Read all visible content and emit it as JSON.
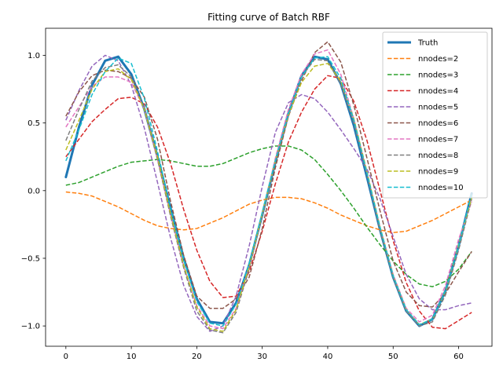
{
  "chart_data": {
    "type": "line",
    "title": "Fitting curve of Batch RBF",
    "xlabel": "",
    "ylabel": "",
    "xlim": [
      -3.1,
      65.1
    ],
    "ylim": [
      -1.15,
      1.2
    ],
    "xticks": [
      0,
      10,
      20,
      30,
      40,
      50,
      60
    ],
    "yticks": [
      -1.0,
      -0.5,
      0.0,
      0.5,
      1.0
    ],
    "xtick_labels": [
      "0",
      "10",
      "20",
      "30",
      "40",
      "50",
      "60"
    ],
    "ytick_labels": [
      "−1.0",
      "−0.5",
      "0.0",
      "0.5",
      "1.0"
    ],
    "grid": false,
    "legend_position": "upper right",
    "x": [
      0,
      2,
      4,
      6,
      8,
      10,
      12,
      14,
      16,
      18,
      20,
      22,
      24,
      26,
      28,
      30,
      32,
      34,
      36,
      38,
      40,
      42,
      44,
      46,
      48,
      50,
      52,
      54,
      56,
      58,
      60,
      62
    ],
    "series": [
      {
        "name": "Truth",
        "color": "#1f77b4",
        "style": "solid",
        "width": 3,
        "values": [
          0.1,
          0.47,
          0.78,
          0.96,
          0.99,
          0.86,
          0.6,
          0.25,
          -0.13,
          -0.5,
          -0.8,
          -0.97,
          -0.98,
          -0.83,
          -0.55,
          -0.18,
          0.21,
          0.57,
          0.85,
          0.99,
          0.97,
          0.79,
          0.48,
          0.1,
          -0.29,
          -0.64,
          -0.89,
          -1.0,
          -0.95,
          -0.74,
          -0.41,
          -0.02
        ]
      },
      {
        "name": "nnodes=2",
        "color": "#ff7f0e",
        "style": "dashed",
        "width": 1.5,
        "values": [
          -0.01,
          -0.02,
          -0.04,
          -0.08,
          -0.12,
          -0.17,
          -0.22,
          -0.26,
          -0.28,
          -0.29,
          -0.28,
          -0.24,
          -0.2,
          -0.15,
          -0.1,
          -0.07,
          -0.05,
          -0.05,
          -0.06,
          -0.09,
          -0.13,
          -0.18,
          -0.22,
          -0.26,
          -0.29,
          -0.31,
          -0.3,
          -0.26,
          -0.22,
          -0.17,
          -0.12,
          -0.07
        ]
      },
      {
        "name": "nnodes=3",
        "color": "#2ca02c",
        "style": "dashed",
        "width": 1.5,
        "values": [
          0.04,
          0.06,
          0.1,
          0.14,
          0.18,
          0.21,
          0.22,
          0.23,
          0.22,
          0.2,
          0.18,
          0.18,
          0.2,
          0.24,
          0.28,
          0.31,
          0.33,
          0.33,
          0.3,
          0.23,
          0.12,
          0.0,
          -0.13,
          -0.27,
          -0.4,
          -0.52,
          -0.62,
          -0.69,
          -0.71,
          -0.67,
          -0.58,
          -0.45
        ]
      },
      {
        "name": "nnodes=4",
        "color": "#d62728",
        "style": "dashed",
        "width": 1.5,
        "values": [
          0.25,
          0.38,
          0.51,
          0.6,
          0.68,
          0.69,
          0.64,
          0.47,
          0.2,
          -0.14,
          -0.44,
          -0.67,
          -0.79,
          -0.78,
          -0.6,
          -0.3,
          0.05,
          0.36,
          0.58,
          0.75,
          0.85,
          0.83,
          0.66,
          0.37,
          0.0,
          -0.37,
          -0.68,
          -0.89,
          -1.01,
          -1.02,
          -0.96,
          -0.9
        ]
      },
      {
        "name": "nnodes=5",
        "color": "#9467bd",
        "style": "dashed",
        "width": 1.5,
        "values": [
          0.52,
          0.74,
          0.92,
          1.0,
          0.96,
          0.78,
          0.46,
          0.06,
          -0.35,
          -0.7,
          -0.93,
          -1.04,
          -1.0,
          -0.78,
          -0.41,
          0.03,
          0.43,
          0.65,
          0.71,
          0.68,
          0.58,
          0.45,
          0.31,
          0.16,
          -0.06,
          -0.34,
          -0.62,
          -0.8,
          -0.88,
          -0.88,
          -0.85,
          -0.83
        ]
      },
      {
        "name": "nnodes=6",
        "color": "#8c564b",
        "style": "dashed",
        "width": 1.5,
        "values": [
          0.55,
          0.73,
          0.85,
          0.89,
          0.88,
          0.83,
          0.69,
          0.38,
          -0.08,
          -0.48,
          -0.78,
          -0.87,
          -0.87,
          -0.8,
          -0.64,
          -0.28,
          0.17,
          0.55,
          0.81,
          1.02,
          1.1,
          0.95,
          0.63,
          0.24,
          -0.15,
          -0.52,
          -0.75,
          -0.85,
          -0.86,
          -0.76,
          -0.6,
          -0.45
        ]
      },
      {
        "name": "nnodes=7",
        "color": "#e377c2",
        "style": "dashed",
        "width": 1.5,
        "values": [
          0.47,
          0.62,
          0.77,
          0.84,
          0.84,
          0.8,
          0.6,
          0.23,
          -0.18,
          -0.56,
          -0.85,
          -1.0,
          -1.02,
          -0.87,
          -0.57,
          -0.18,
          0.24,
          0.6,
          0.86,
          1.01,
          1.04,
          0.86,
          0.53,
          0.13,
          -0.27,
          -0.62,
          -0.87,
          -0.97,
          -0.92,
          -0.7,
          -0.36,
          -0.08
        ]
      },
      {
        "name": "nnodes=8",
        "color": "#7f7f7f",
        "style": "dashed",
        "width": 1.5,
        "values": [
          0.37,
          0.6,
          0.81,
          0.91,
          0.93,
          0.84,
          0.6,
          0.23,
          -0.19,
          -0.57,
          -0.89,
          -1.03,
          -1.05,
          -0.9,
          -0.58,
          -0.18,
          0.21,
          0.57,
          0.84,
          0.97,
          0.96,
          0.79,
          0.5,
          0.12,
          -0.29,
          -0.64,
          -0.89,
          -1.0,
          -0.97,
          -0.77,
          -0.44,
          -0.06
        ]
      },
      {
        "name": "nnodes=9",
        "color": "#bcbd22",
        "style": "dashed",
        "width": 1.5,
        "values": [
          0.3,
          0.52,
          0.75,
          0.88,
          0.9,
          0.82,
          0.6,
          0.25,
          -0.17,
          -0.55,
          -0.86,
          -1.02,
          -1.04,
          -0.88,
          -0.56,
          -0.17,
          0.22,
          0.56,
          0.8,
          0.92,
          0.94,
          0.81,
          0.53,
          0.14,
          -0.27,
          -0.63,
          -0.88,
          -0.99,
          -0.95,
          -0.74,
          -0.4,
          -0.05
        ]
      },
      {
        "name": "nnodes=10",
        "color": "#17becf",
        "style": "dashed",
        "width": 1.5,
        "values": [
          0.22,
          0.45,
          0.71,
          0.88,
          0.98,
          0.94,
          0.68,
          0.29,
          -0.13,
          -0.51,
          -0.82,
          -0.98,
          -1.0,
          -0.84,
          -0.54,
          -0.16,
          0.22,
          0.57,
          0.84,
          0.98,
          0.99,
          0.83,
          0.52,
          0.13,
          -0.27,
          -0.63,
          -0.88,
          -0.99,
          -0.95,
          -0.74,
          -0.41,
          -0.02
        ]
      }
    ]
  }
}
